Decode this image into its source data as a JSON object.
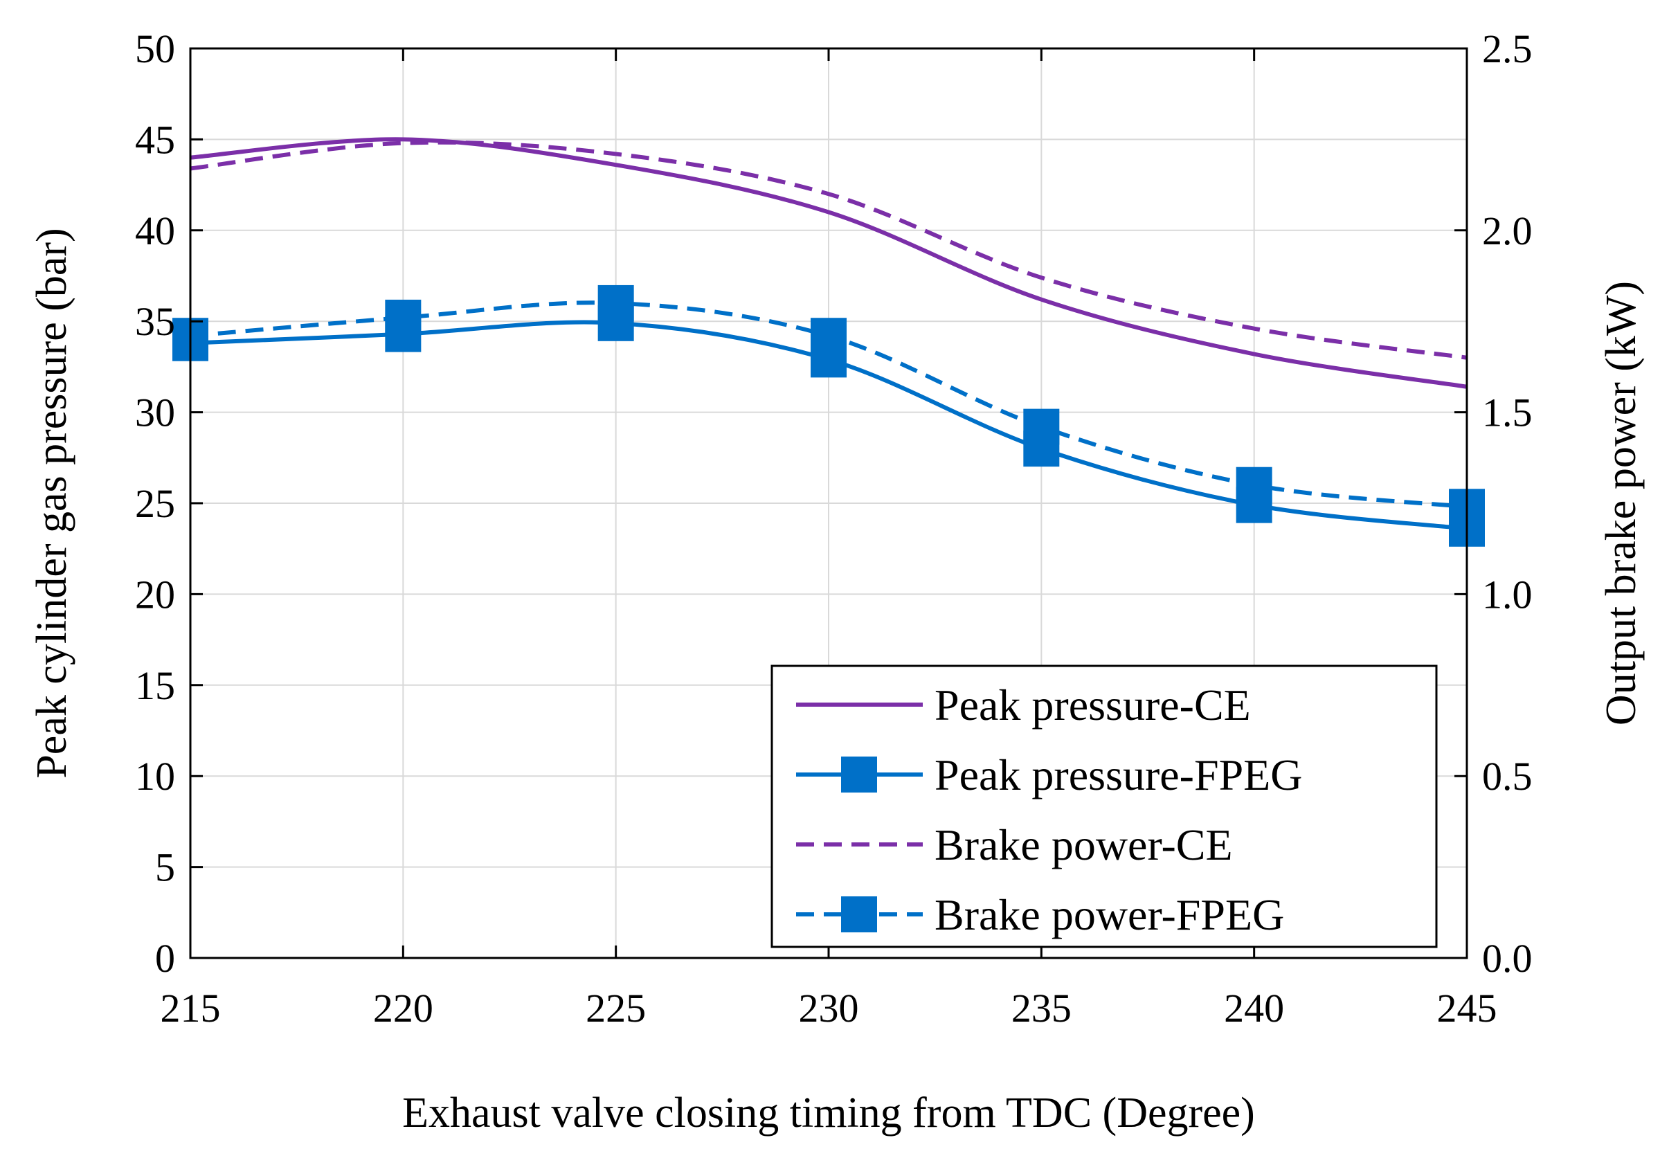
{
  "chart_data": {
    "type": "line",
    "xlabel": "Exhaust valve closing timing from TDC (Degree)",
    "ylabel": "Peak cylinder gas pressure (bar)",
    "y2label": "Output brake power (kW)",
    "x": [
      215,
      220,
      225,
      230,
      235,
      240,
      245
    ],
    "xlim": [
      215,
      245
    ],
    "ylim": [
      0,
      50
    ],
    "y2lim": [
      0,
      2.5
    ],
    "x_ticks": [
      "215",
      "220",
      "225",
      "230",
      "235",
      "240",
      "245"
    ],
    "y_ticks": [
      "0",
      "5",
      "10",
      "15",
      "20",
      "25",
      "30",
      "35",
      "40",
      "45",
      "50"
    ],
    "y2_ticks": [
      "0.0",
      "0.5",
      "1.0",
      "1.5",
      "2.0",
      "2.5"
    ],
    "grid": true,
    "legend_position": "bottom-right",
    "series": [
      {
        "name": "Peak pressure-CE",
        "axis": "left",
        "color": "#7b2fa8",
        "dash": "solid",
        "marker": "none",
        "values": [
          44.0,
          45.0,
          43.6,
          41.0,
          36.2,
          33.2,
          31.4
        ]
      },
      {
        "name": "Peak pressure-FPEG",
        "axis": "left",
        "color": "#0070c8",
        "dash": "solid",
        "marker": "square",
        "values": [
          33.8,
          34.3,
          34.9,
          32.9,
          28.0,
          24.9,
          23.6
        ]
      },
      {
        "name": "Brake power-CE",
        "axis": "right",
        "color": "#7b2fa8",
        "dash": "dashed",
        "marker": "none",
        "values": [
          2.17,
          2.24,
          2.21,
          2.1,
          1.87,
          1.73,
          1.65
        ]
      },
      {
        "name": "Brake power-FPEG",
        "axis": "right",
        "color": "#0070c8",
        "dash": "dashed",
        "marker": "square",
        "values": [
          1.71,
          1.76,
          1.8,
          1.71,
          1.46,
          1.3,
          1.24
        ]
      }
    ]
  }
}
